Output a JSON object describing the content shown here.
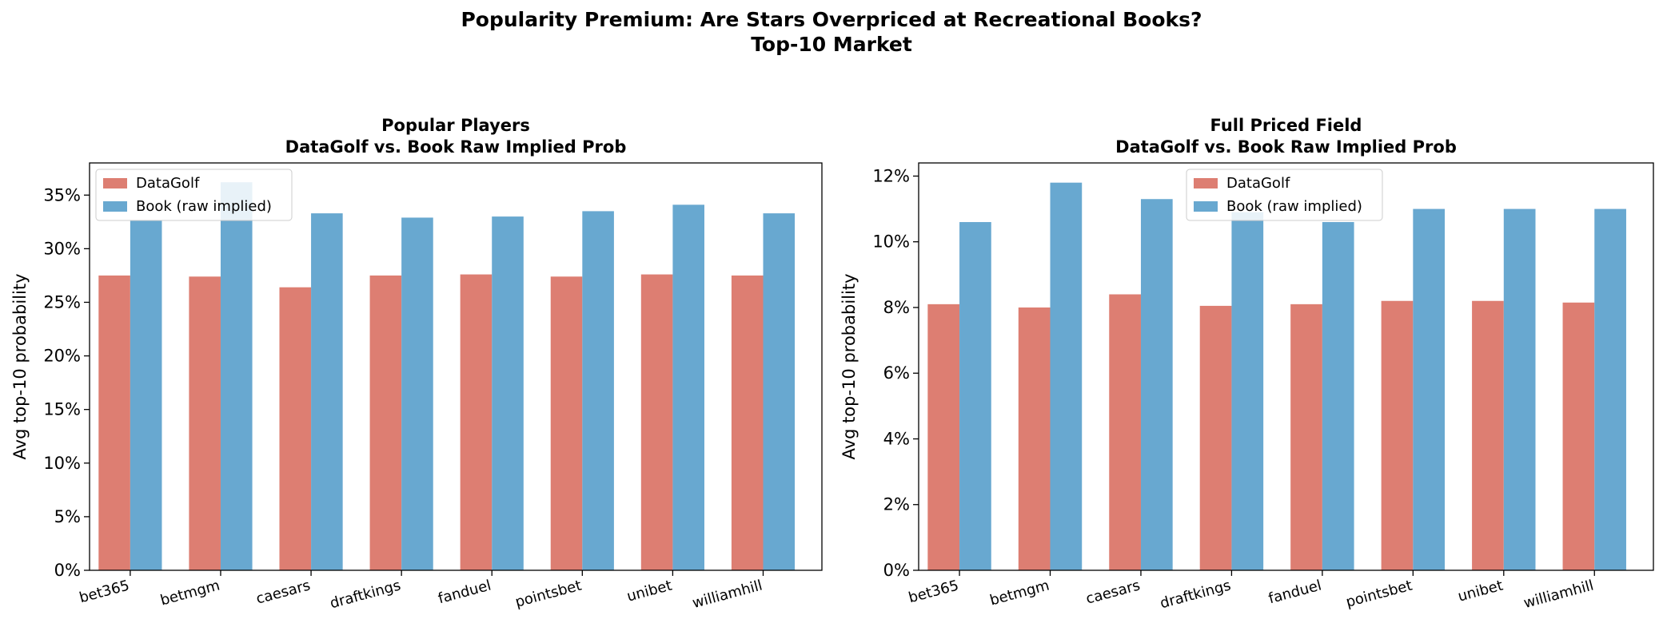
{
  "figure": {
    "title_line1": "Popularity Premium: Are Stars Overpriced at Recreational Books?",
    "title_line2": "Top-10 Market"
  },
  "colors": {
    "datagolf": "#dd7e72",
    "book": "#68a8d0"
  },
  "chart_data": [
    {
      "type": "bar",
      "title_line1": "Popular Players",
      "title_line2": "DataGolf vs. Book Raw Implied Prob",
      "ylabel": "Avg top-10 probability",
      "xlabel": "",
      "categories": [
        "bet365",
        "betmgm",
        "caesars",
        "draftkings",
        "fanduel",
        "pointsbet",
        "unibet",
        "williamhill"
      ],
      "ylim": [
        0,
        0.38
      ],
      "yticks": [
        0,
        0.05,
        0.1,
        0.15,
        0.2,
        0.25,
        0.3,
        0.35
      ],
      "ytick_labels": [
        "0%",
        "5%",
        "10%",
        "15%",
        "20%",
        "25%",
        "30%",
        "35%"
      ],
      "grid": false,
      "legend": "upper-left",
      "series": [
        {
          "name": "DataGolf",
          "values": [
            0.275,
            0.274,
            0.264,
            0.275,
            0.276,
            0.274,
            0.276,
            0.275
          ]
        },
        {
          "name": "Book (raw implied)",
          "values": [
            0.326,
            0.362,
            0.333,
            0.329,
            0.33,
            0.335,
            0.341,
            0.333
          ]
        }
      ]
    },
    {
      "type": "bar",
      "title_line1": "Full Priced Field",
      "title_line2": "DataGolf vs. Book Raw Implied Prob",
      "ylabel": "Avg top-10 probability",
      "xlabel": "",
      "categories": [
        "bet365",
        "betmgm",
        "caesars",
        "draftkings",
        "fanduel",
        "pointsbet",
        "unibet",
        "williamhill"
      ],
      "ylim": [
        0,
        0.124
      ],
      "yticks": [
        0,
        0.02,
        0.04,
        0.06,
        0.08,
        0.1,
        0.12
      ],
      "ytick_labels": [
        "0%",
        "2%",
        "4%",
        "6%",
        "8%",
        "10%",
        "12%"
      ],
      "grid": false,
      "legend": "upper-center",
      "series": [
        {
          "name": "DataGolf",
          "values": [
            0.081,
            0.08,
            0.084,
            0.0805,
            0.081,
            0.082,
            0.082,
            0.0815
          ]
        },
        {
          "name": "Book (raw implied)",
          "values": [
            0.106,
            0.118,
            0.113,
            0.109,
            0.106,
            0.11,
            0.11,
            0.11
          ]
        }
      ]
    }
  ]
}
